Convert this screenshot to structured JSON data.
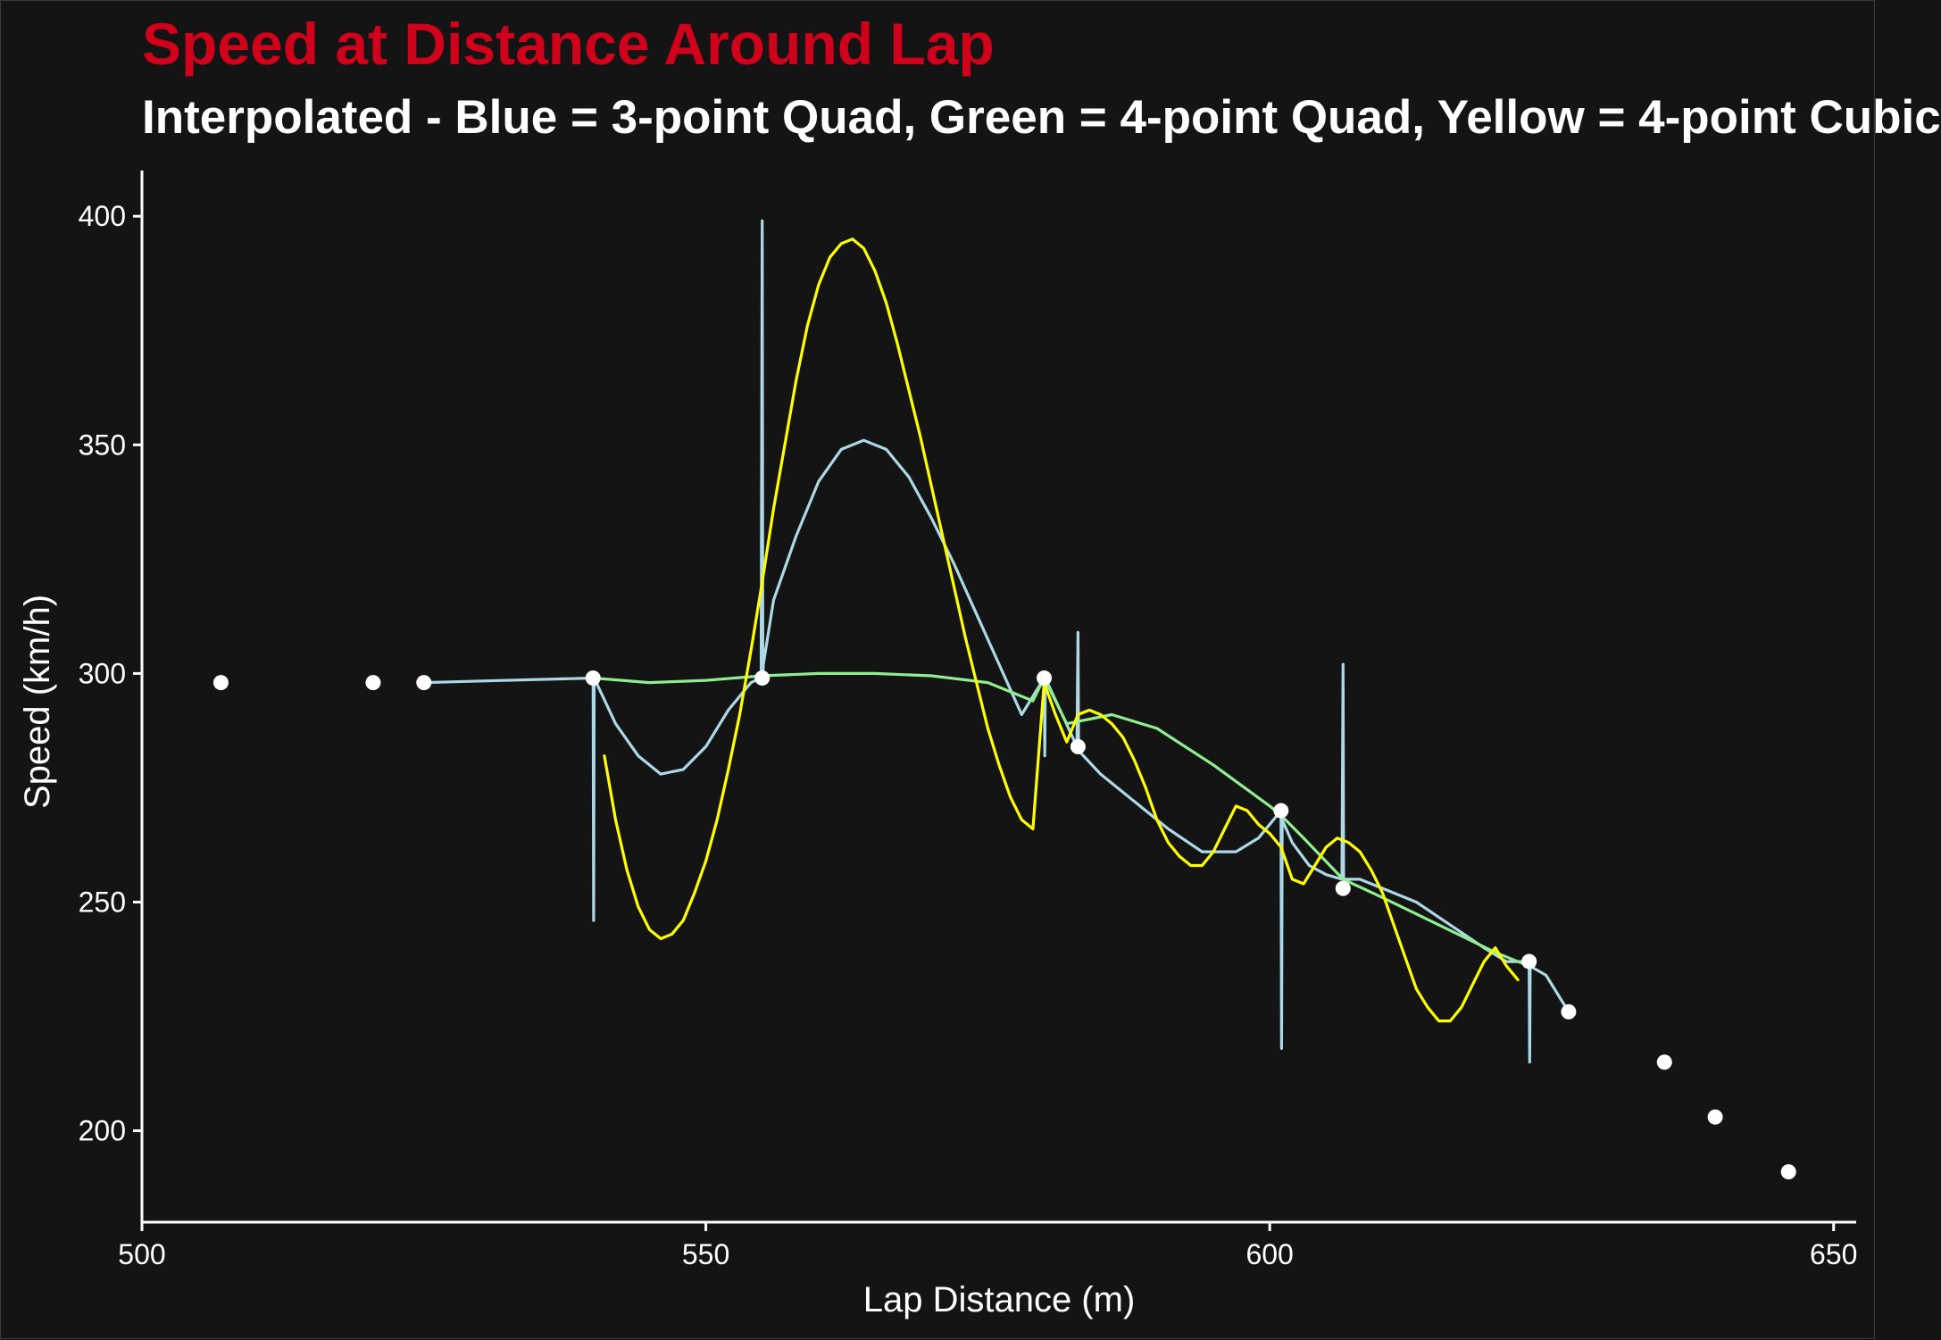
{
  "chart_data": {
    "type": "line",
    "title": "Speed at Distance Around Lap",
    "subtitle": "Interpolated - Blue = 3-point Quad, Green = 4-point Quad, Yellow = 4-point Cubic",
    "xlabel": "Lap Distance (m)",
    "ylabel": "Speed (km/h)",
    "xlim": [
      500,
      652
    ],
    "ylim": [
      180,
      410
    ],
    "xticks": [
      500,
      550,
      600,
      650
    ],
    "yticks": [
      200,
      250,
      300,
      350,
      400
    ],
    "grid": false,
    "legend": "none",
    "background": "#141414",
    "colors": {
      "title": "#d0021b",
      "points": "#ffffff",
      "axis": "#ffffff"
    },
    "points": {
      "x": [
        507,
        520.5,
        525,
        540,
        555,
        580,
        583,
        601,
        606.5,
        623,
        626.5,
        635,
        639.5,
        646
      ],
      "y": [
        298,
        298,
        298,
        299,
        299,
        299,
        284,
        270,
        253,
        237,
        226,
        215,
        203,
        191
      ]
    },
    "series": [
      {
        "color": "#add8e6",
        "x": [
          525,
          540,
          540.05,
          540.1,
          542,
          544,
          546,
          548,
          550,
          552,
          554,
          554.9,
          555,
          555.05,
          555.1,
          556,
          558,
          560,
          562,
          564,
          566,
          568,
          570,
          572,
          574,
          576,
          578,
          580,
          580.05,
          580.1,
          582.9,
          583,
          583.05,
          583.1,
          585,
          588,
          591,
          594,
          597,
          599,
          601,
          601.05,
          601.1,
          602,
          603.5,
          605,
          606.4,
          606.5,
          606.55,
          606.6,
          608,
          610,
          613,
          616,
          619,
          621,
          623,
          623.05,
          623.1,
          624.5,
          626.5
        ],
        "y": [
          298,
          299,
          246,
          299,
          289,
          282,
          278,
          279,
          284,
          292,
          298,
          299,
          399,
          299,
          302,
          316,
          330,
          342,
          349,
          351,
          349,
          343,
          334,
          324,
          313,
          302,
          291,
          299,
          282,
          299,
          284,
          309,
          283,
          283,
          278,
          272,
          266,
          261,
          261,
          264,
          270,
          218,
          268,
          263,
          258,
          256,
          255,
          302,
          255,
          255,
          255,
          253,
          250,
          245,
          240,
          237,
          237,
          215,
          236,
          234,
          226
        ]
      },
      {
        "color": "#90ee90",
        "x": [
          540,
          545,
          550,
          555,
          560,
          565,
          570,
          575,
          579,
          580,
          582,
          586,
          590,
          595,
          600,
          601,
          603,
          606.5,
          610,
          615,
          620,
          623
        ],
        "y": [
          299,
          298,
          298.5,
          299.5,
          300,
          300,
          299.5,
          298,
          294,
          299,
          289,
          291,
          288,
          280,
          271,
          269,
          264,
          255,
          251,
          245,
          239,
          236
        ]
      },
      {
        "color": "#ffff00",
        "x": [
          541,
          542,
          543,
          544,
          545,
          546,
          547,
          548,
          549,
          550,
          551,
          552,
          553,
          554,
          555,
          556,
          557,
          558,
          559,
          560,
          561,
          562,
          563,
          564,
          565,
          566,
          567,
          568,
          569,
          570,
          571,
          572,
          573,
          574,
          575,
          576,
          577,
          578,
          579,
          580,
          581,
          582,
          583,
          584,
          585,
          586,
          587,
          588,
          589,
          590,
          591,
          592,
          593,
          594,
          595,
          596,
          597,
          598,
          599,
          600,
          601,
          602,
          603,
          604,
          605,
          606,
          607,
          608,
          609,
          610,
          611,
          612,
          613,
          614,
          615,
          616,
          617,
          618,
          619,
          620,
          621,
          622
        ],
        "y": [
          282,
          268,
          257,
          249,
          244,
          242,
          243,
          246,
          252,
          259,
          268,
          279,
          291,
          305,
          320,
          336,
          350,
          364,
          376,
          385,
          391,
          394,
          395,
          393,
          388,
          381,
          372,
          362,
          352,
          341,
          330,
          319,
          308,
          298,
          288,
          280,
          273,
          268,
          266,
          298,
          291,
          285,
          291,
          292,
          291,
          289,
          286,
          281,
          275,
          268,
          263,
          260,
          258,
          258,
          261,
          266,
          271,
          270,
          267,
          265,
          262,
          255,
          254,
          258,
          262,
          264,
          263,
          261,
          257,
          252,
          245,
          238,
          231,
          227,
          224,
          224,
          227,
          232,
          237,
          240,
          236,
          233
        ]
      }
    ]
  }
}
